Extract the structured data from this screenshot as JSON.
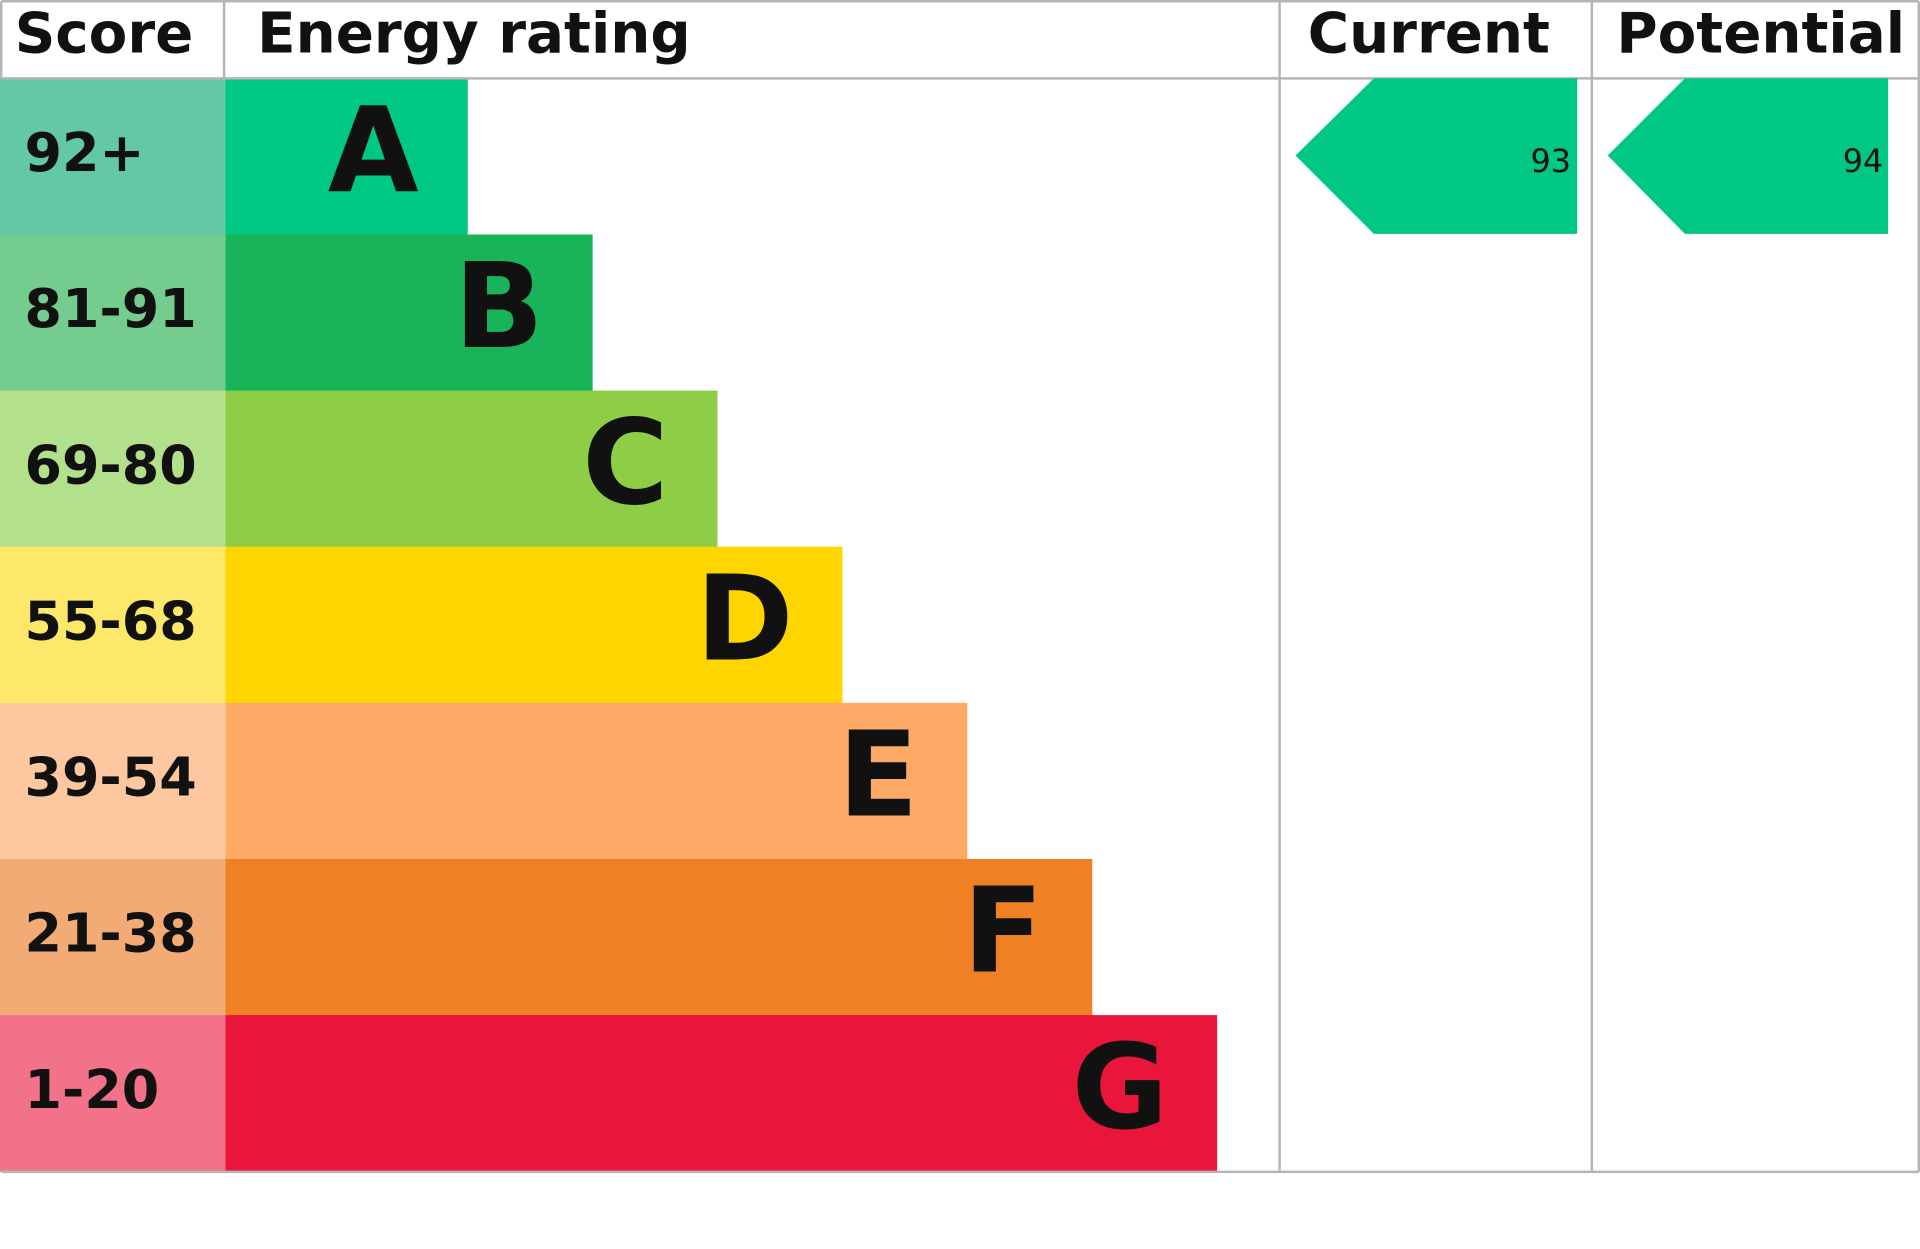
{
  "header": {
    "score": "Score",
    "rating": "Energy rating",
    "current": "Current",
    "potential": "Potential"
  },
  "rows": [
    {
      "score": "92+",
      "letter": "A"
    },
    {
      "score": "81-91",
      "letter": "B"
    },
    {
      "score": "69-80",
      "letter": "C"
    },
    {
      "score": "55-68",
      "letter": "D"
    },
    {
      "score": "39-54",
      "letter": "E"
    },
    {
      "score": "21-38",
      "letter": "F"
    },
    {
      "score": "1-20",
      "letter": "G"
    }
  ],
  "current": {
    "value": "93"
  },
  "potential": {
    "value": "94"
  }
}
